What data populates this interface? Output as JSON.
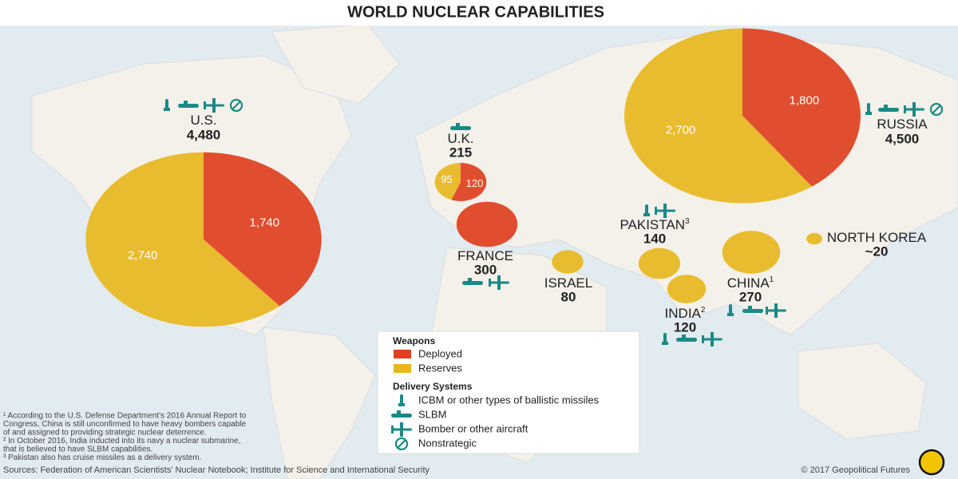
{
  "title": "WORLD NUCLEAR CAPABILITIES",
  "colors": {
    "deployed": "#e0401e",
    "reserves": "#e8b71e",
    "icons": "#1a8a86"
  },
  "countries": [
    {
      "name": "U.S.",
      "total": {
        "value": 4480,
        "label": "4,480"
      },
      "deployed": {
        "value": 1740,
        "label": "1,740"
      },
      "reserves": {
        "value": 2740,
        "label": "2,740"
      }
    },
    {
      "name": "RUSSIA",
      "total": {
        "value": 4500,
        "label": "4,500"
      },
      "deployed": {
        "value": 1800,
        "label": "1,800"
      },
      "reserves": {
        "value": 2700,
        "label": "2,700"
      }
    },
    {
      "name": "U.K.",
      "total": 215,
      "deployed": 120,
      "reserves": 95
    },
    {
      "name": "FRANCE",
      "total": 300,
      "deployed": 300
    },
    {
      "name": "ISRAEL",
      "total": 80,
      "reserves": 80
    },
    {
      "name": "PAKISTAN",
      "note": "3",
      "total": 140,
      "reserves": 140
    },
    {
      "name": "INDIA",
      "note": "2",
      "total": 120,
      "reserves": 120
    },
    {
      "name": "CHINA",
      "note": "1",
      "total": 270,
      "reserves": 270
    },
    {
      "name": "NORTH KOREA",
      "total": {
        "value": 20,
        "label": "~20"
      },
      "reserves": 20
    }
  ],
  "legend": {
    "weapons": "Weapons",
    "deployed": "Deployed",
    "reserves": "Reserves",
    "delivery": "Delivery Systems",
    "icbm": "ICBM or other types of ballistic missiles",
    "slbm": "SLBM",
    "bomber": "Bomber or other aircraft",
    "nonstrategic": "Nonstrategic"
  },
  "footnotes": [
    "¹ According to the U.S. Defense Department's 2016 Annual Report to",
    "Congress, China is still unconfirmed to have heavy bombers capable",
    "of and assigned to providing strategic nuclear deterrence.",
    "² In October 2016, India inducted into its navy a nuclear submarine,",
    "that is believed to have SLBM capabilities.",
    "³ Pakistan also has cruise missiles as a delivery system."
  ],
  "sources": "Sources: Federation of American Scientists' Nuclear Notebook; Institute for Science and International Security",
  "copyright": "© 2017 Geopolitical Futures"
}
